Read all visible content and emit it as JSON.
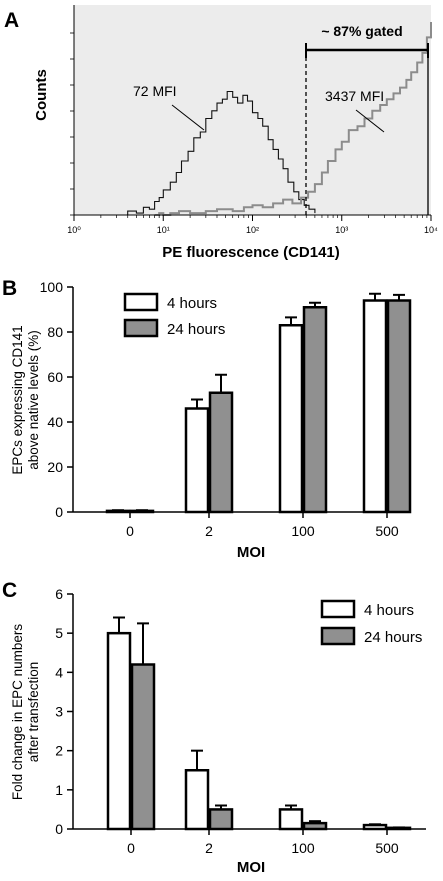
{
  "panels": {
    "a": {
      "letter": "A"
    },
    "b": {
      "letter": "B"
    },
    "c": {
      "letter": "C"
    }
  },
  "chart_data": [
    {
      "type": "area",
      "panel": "A",
      "xlabel": "PE fluorescence (CD141)",
      "ylabel": "Counts",
      "x_scale": "log",
      "xlim": [
        1,
        10000
      ],
      "x_ticks": [
        "10⁰",
        "10¹",
        "10²",
        "10³",
        "10⁴"
      ],
      "x_tick_values": [
        1,
        10,
        100,
        1000,
        10000
      ],
      "annotations": [
        "72 MFI",
        "3437 MFI",
        "~ 87% gated"
      ],
      "gate_x": 400,
      "background": "#ececec",
      "series": [
        {
          "color": "#111111",
          "x": [
            3,
            4,
            5,
            6,
            7,
            8,
            9,
            10,
            12,
            14,
            16,
            19,
            22,
            26,
            30,
            35,
            40,
            46,
            52,
            60,
            68,
            78,
            88,
            100,
            115,
            130,
            150,
            170,
            195,
            220,
            250,
            290,
            330,
            380,
            430,
            500
          ],
          "y": [
            0,
            2,
            1,
            4,
            3,
            7,
            9,
            13,
            17,
            22,
            28,
            33,
            40,
            43,
            50,
            54,
            58,
            60,
            64,
            61,
            58,
            62,
            59,
            53,
            50,
            46,
            39,
            34,
            29,
            24,
            17,
            12,
            8,
            5,
            3,
            1
          ]
        },
        {
          "color": "#8c8c8c",
          "x": [
            8,
            9,
            10,
            12,
            15,
            20,
            30,
            40,
            60,
            80,
            100,
            130,
            170,
            220,
            280,
            350,
            420,
            500,
            600,
            700,
            850,
            1000,
            1200,
            1500,
            1800,
            2200,
            2700,
            3200,
            3800,
            4500,
            5300,
            6000,
            7000,
            8000,
            9000,
            10000
          ],
          "y": [
            0,
            1,
            0,
            1,
            2,
            1,
            2,
            3,
            2,
            4,
            5,
            4,
            6,
            8,
            6,
            9,
            12,
            16,
            22,
            28,
            34,
            38,
            44,
            46,
            50,
            54,
            57,
            60,
            63,
            66,
            70,
            74,
            79,
            84,
            92,
            100
          ]
        }
      ]
    },
    {
      "type": "bar",
      "panel": "B",
      "categories": [
        "0",
        "2",
        "100",
        "500"
      ],
      "xlabel": "MOI",
      "ylabel": "EPCs expressing CD141 above native levels (%)",
      "ylabel_lines": [
        "EPCs expressing CD141",
        "above native levels (%)"
      ],
      "ylim": [
        0,
        100
      ],
      "yticks": [
        0,
        20,
        40,
        60,
        80,
        100
      ],
      "legend_position": "top-left",
      "series": [
        {
          "name": "4 hours",
          "color": "#ffffff",
          "values": [
            0.5,
            46,
            83,
            94
          ],
          "errors": [
            0.3,
            4,
            3.5,
            3
          ]
        },
        {
          "name": "24 hours",
          "color": "#909090",
          "values": [
            0.5,
            53,
            91,
            94
          ],
          "errors": [
            0.3,
            8,
            2,
            2.5
          ]
        }
      ]
    },
    {
      "type": "bar",
      "panel": "C",
      "categories": [
        "0",
        "2",
        "100",
        "500"
      ],
      "xlabel": "MOI",
      "ylabel": "Fold change in EPC numbers after transfection",
      "ylabel_lines": [
        "Fold change in EPC numbers",
        "after transfection"
      ],
      "ylim": [
        0,
        6
      ],
      "yticks": [
        0,
        1,
        2,
        3,
        4,
        5,
        6
      ],
      "legend_position": "top-right",
      "series": [
        {
          "name": "4 hours",
          "color": "#ffffff",
          "values": [
            5.0,
            1.5,
            0.5,
            0.1
          ],
          "errors": [
            0.4,
            0.5,
            0.1,
            0.02
          ]
        },
        {
          "name": "24 hours",
          "color": "#909090",
          "values": [
            4.2,
            0.5,
            0.15,
            0.03
          ],
          "errors": [
            1.05,
            0.1,
            0.05,
            0.01
          ]
        }
      ]
    }
  ]
}
